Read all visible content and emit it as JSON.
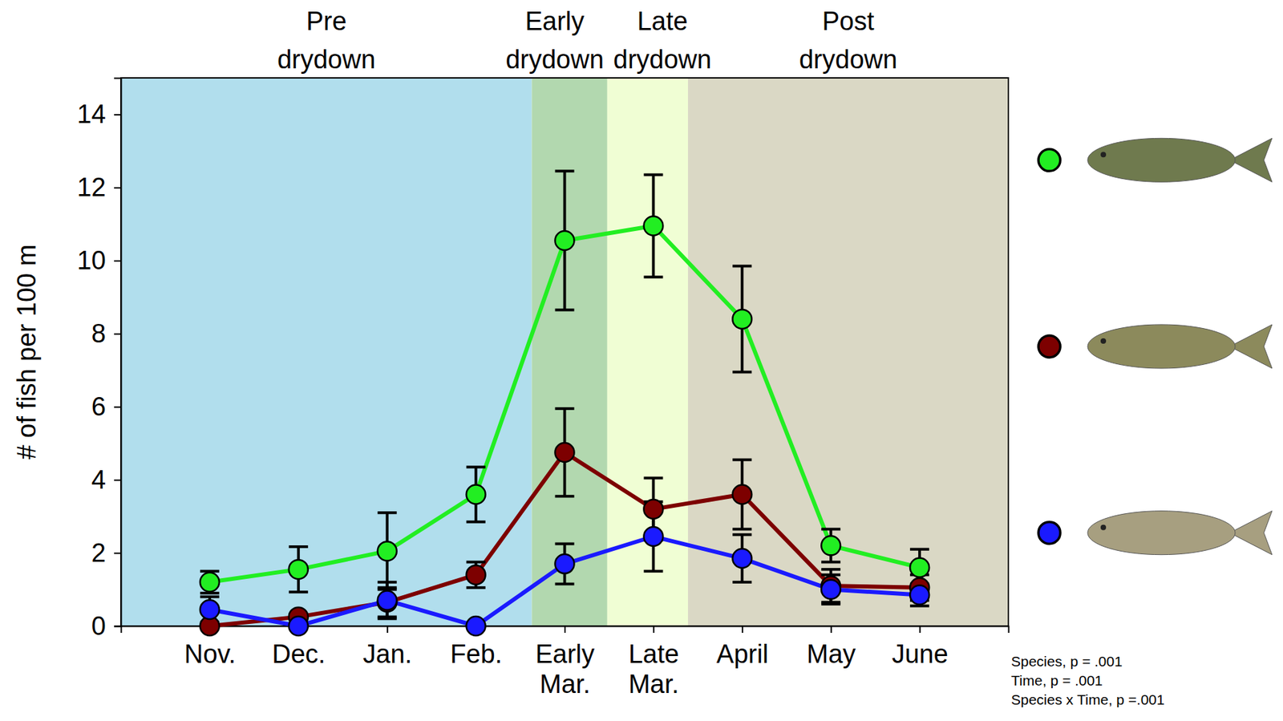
{
  "chart_data": {
    "type": "line",
    "y_label": "# of fish per 100 m",
    "categories": [
      "Nov.",
      "Dec.",
      "Jan.",
      "Feb.",
      "Early Mar.",
      "Late Mar.",
      "April",
      "May",
      "June"
    ],
    "ylim": [
      0,
      15
    ],
    "yticks": [
      0,
      2,
      4,
      6,
      8,
      10,
      12,
      14
    ],
    "grid": false,
    "legend": "right",
    "marker": "circle",
    "phases": [
      {
        "label": "Pre drydown",
        "start": -1,
        "end": 3.63,
        "color": "#b1deed"
      },
      {
        "label": "Early drydown",
        "start": 3.63,
        "end": 4.48,
        "color": "#b2d8af"
      },
      {
        "label": "Late drydown",
        "start": 4.48,
        "end": 5.39,
        "color": "#f0fed4"
      },
      {
        "label": "Post drydown",
        "start": 5.39,
        "end": 9,
        "color": "#dad8c5"
      }
    ],
    "annotations": [
      "Species, p = .001",
      "Time, p = .001",
      "Species x Time, p =.001"
    ],
    "series": [
      {
        "color": "#22ee22",
        "values": [
          1.2,
          1.55,
          2.05,
          3.6,
          10.55,
          10.95,
          8.4,
          2.2,
          1.6
        ],
        "errors": [
          0.3,
          0.62,
          1.05,
          0.75,
          1.9,
          1.4,
          1.45,
          0.45,
          0.5
        ]
      },
      {
        "color": "#7d0000",
        "values": [
          0,
          0.25,
          0.65,
          1.4,
          4.75,
          3.2,
          3.6,
          1.1,
          1.05
        ],
        "errors": [
          0,
          0,
          0.4,
          0.35,
          1.2,
          0.85,
          0.95,
          0.45,
          0.35
        ]
      },
      {
        "color": "#1a1aff",
        "values": [
          0.45,
          0,
          0.7,
          0,
          1.7,
          2.45,
          1.85,
          1.0,
          0.85
        ],
        "errors": [
          0.35,
          0,
          0.5,
          0,
          0.55,
          0.95,
          0.65,
          0.4,
          0.3
        ]
      }
    ]
  }
}
